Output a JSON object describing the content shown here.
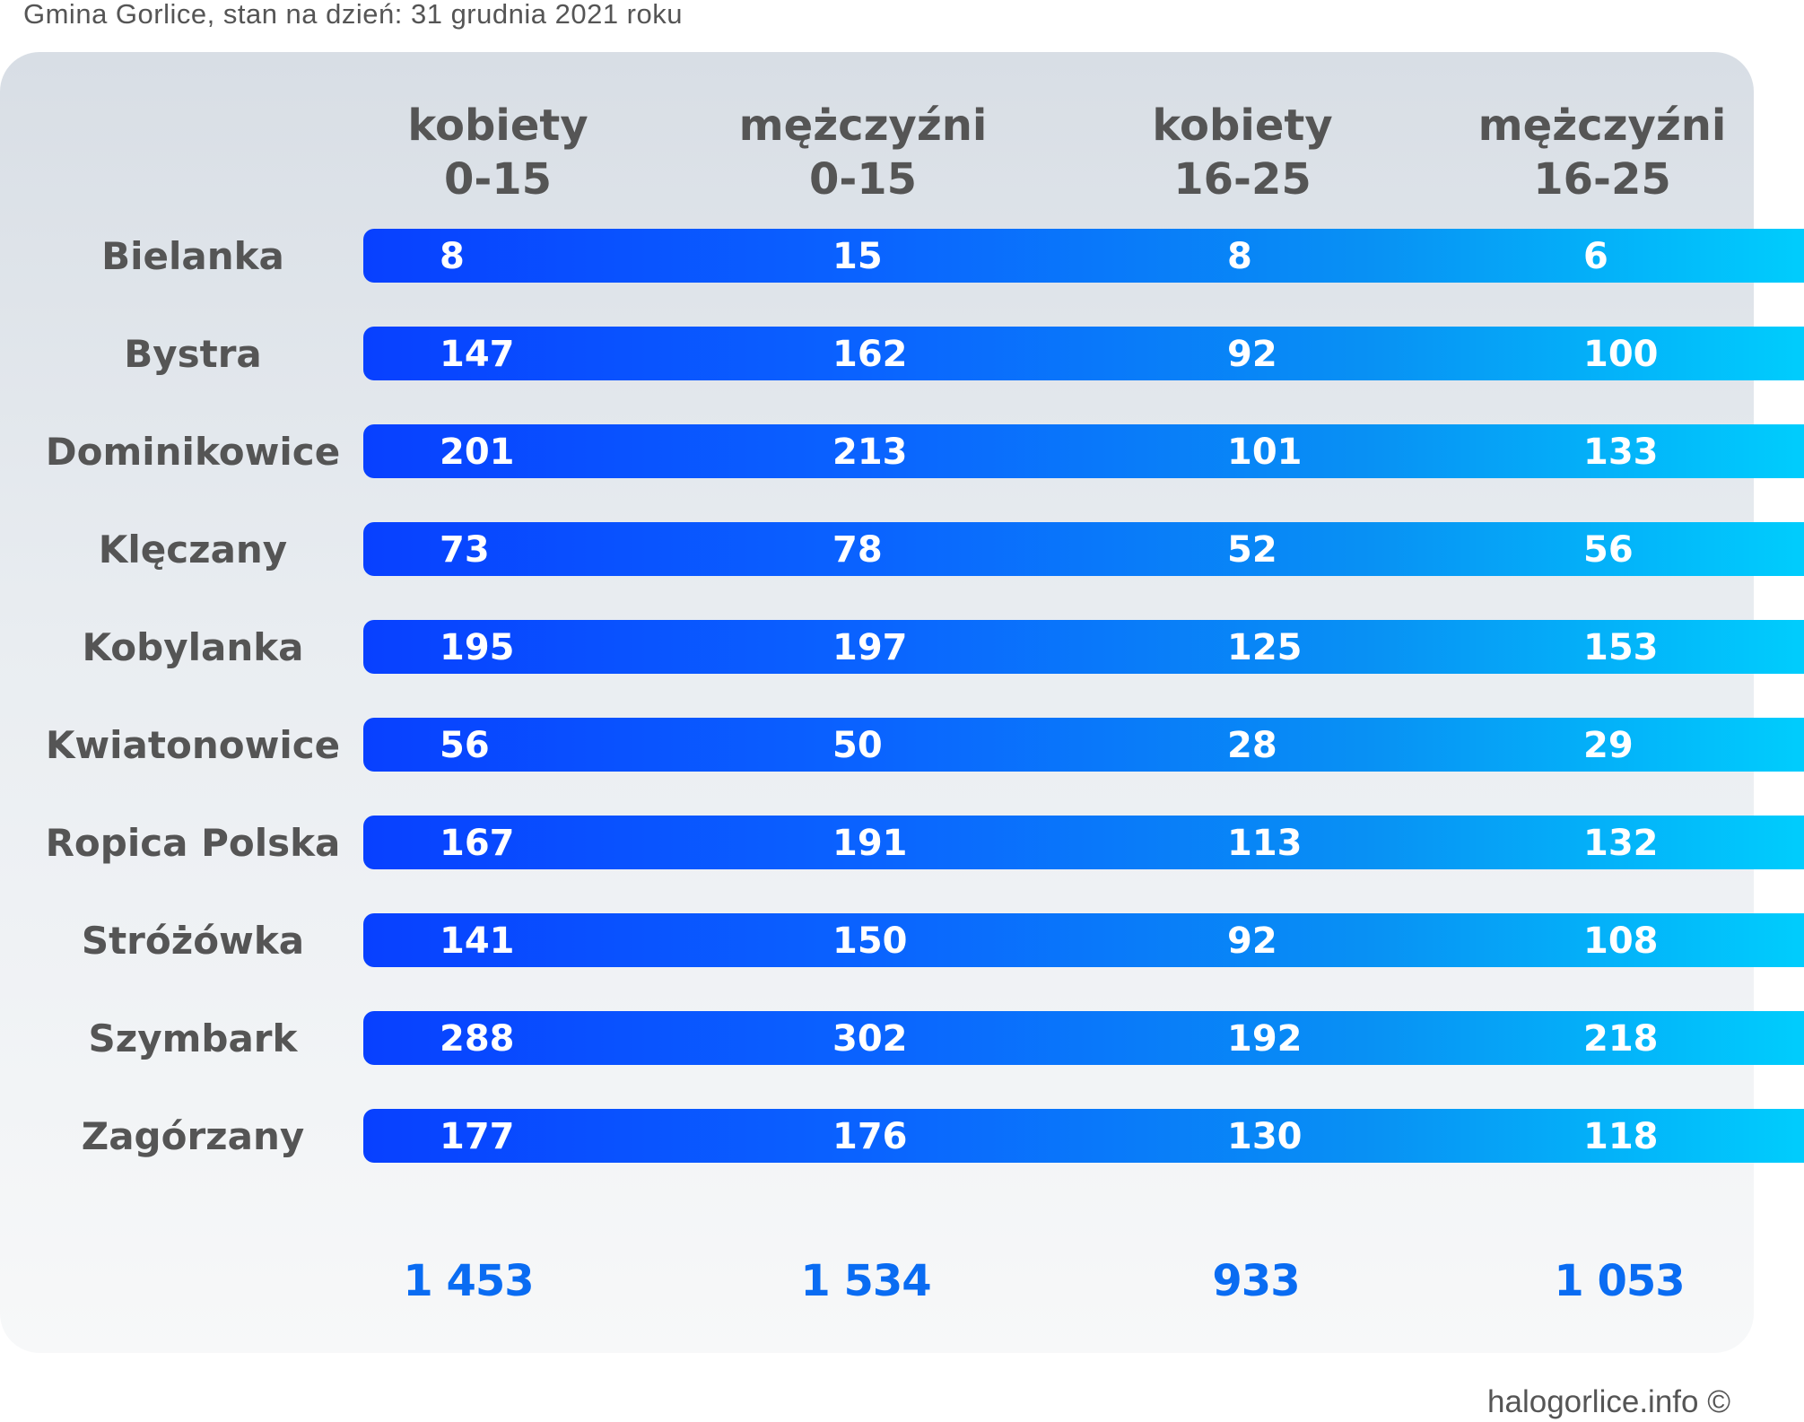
{
  "subtitle": "Gmina Gorlice, stan na dzień: 31 grudnia 2021 roku",
  "credit": "halogorlice.info ©",
  "colors": {
    "bar_start": "#0840ff",
    "bar_end": "#00cdfd",
    "text_gray": "#555555",
    "total_blue": "#0a6cf2"
  },
  "chart_data": {
    "type": "table",
    "columns": [
      {
        "line1": "kobiety",
        "line2": "0-15"
      },
      {
        "line1": "mężczyźni",
        "line2": "0-15"
      },
      {
        "line1": "kobiety",
        "line2": "16-25"
      },
      {
        "line1": "mężczyźni",
        "line2": "16-25"
      }
    ],
    "rows": [
      {
        "name": "Bielanka",
        "values": [
          "8",
          "15",
          "8",
          "6"
        ]
      },
      {
        "name": "Bystra",
        "values": [
          "147",
          "162",
          "92",
          "100"
        ]
      },
      {
        "name": "Dominikowice",
        "values": [
          "201",
          "213",
          "101",
          "133"
        ]
      },
      {
        "name": "Klęczany",
        "values": [
          "73",
          "78",
          "52",
          "56"
        ]
      },
      {
        "name": "Kobylanka",
        "values": [
          "195",
          "197",
          "125",
          "153"
        ]
      },
      {
        "name": "Kwiatonowice",
        "values": [
          "56",
          "50",
          "28",
          "29"
        ]
      },
      {
        "name": "Ropica Polska",
        "values": [
          "167",
          "191",
          "113",
          "132"
        ]
      },
      {
        "name": "Stróżówka",
        "values": [
          "141",
          "150",
          "92",
          "108"
        ]
      },
      {
        "name": "Szymbark",
        "values": [
          "288",
          "302",
          "192",
          "218"
        ]
      },
      {
        "name": "Zagórzany",
        "values": [
          "177",
          "176",
          "130",
          "118"
        ]
      }
    ],
    "totals": [
      "1 453",
      "1 534",
      "933",
      "1 053"
    ]
  }
}
